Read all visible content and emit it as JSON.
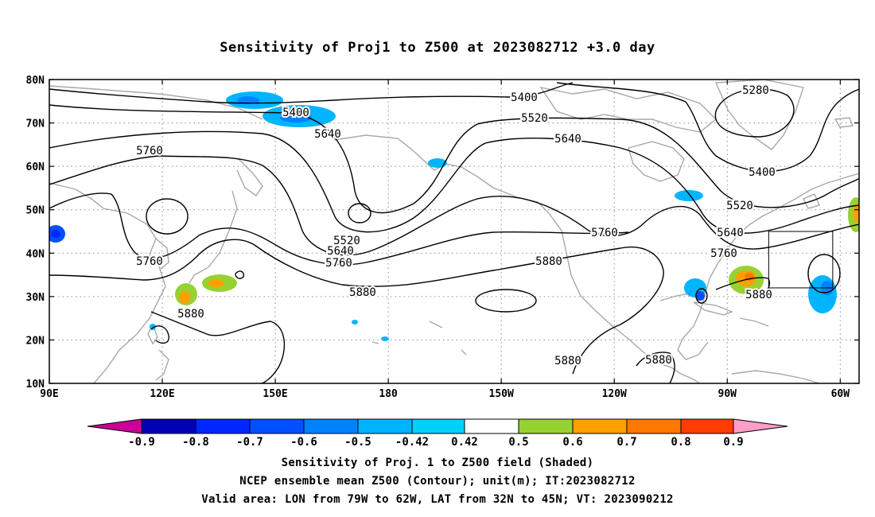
{
  "title": "Sensitivity of Proj1 to Z500 at 2023082712 +3.0 day",
  "map": {
    "lon_range": [
      90,
      305
    ],
    "lat_range": [
      10,
      80
    ],
    "lat_ticks": [
      "80N",
      "70N",
      "60N",
      "50N",
      "40N",
      "30N",
      "20N",
      "10N"
    ],
    "lon_ticks": [
      "90E",
      "120E",
      "150E",
      "180",
      "150W",
      "120W",
      "90W",
      "60W"
    ],
    "grid": true,
    "valid_box": {
      "lon": [
        -79,
        -62
      ],
      "lat": [
        32,
        45
      ]
    }
  },
  "contour_labels": [
    "5280",
    "5400",
    "5400",
    "5400",
    "5520",
    "5520",
    "5520",
    "5640",
    "5640",
    "5640",
    "5640",
    "5760",
    "5760",
    "5760",
    "5760",
    "5760",
    "5880",
    "5880",
    "5880",
    "5880",
    "5880",
    "5880"
  ],
  "colorbar": {
    "labels": [
      "-0.9",
      "-0.8",
      "-0.7",
      "-0.6",
      "-0.5",
      "-0.42",
      "0.42",
      "0.5",
      "0.6",
      "0.7",
      "0.8",
      "0.9"
    ],
    "colors": [
      "#cc0099",
      "#0000b4",
      "#0028ff",
      "#0050ff",
      "#0082ff",
      "#00b4ff",
      "#00d2ff",
      "#ffffff",
      "#96d232",
      "#ffa000",
      "#ff7800",
      "#ff3c00",
      "#ff0000",
      "#ff9ec8"
    ]
  },
  "captions": [
    "Sensitivity of Proj. 1 to Z500 field (Shaded)",
    "NCEP ensemble mean Z500 (Contour); unit(m); IT:2023082712",
    "Valid area: LON from 79W to 62W, LAT from 32N to 45N; VT: 2023090212"
  ]
}
